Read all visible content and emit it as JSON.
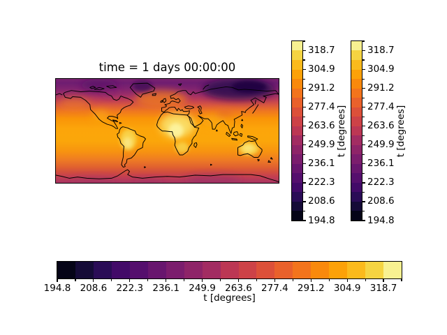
{
  "figure": {
    "title": "time = 1 days 00:00:00",
    "background": "#ffffff"
  },
  "colormap": {
    "name": "inferno",
    "segment_colors": [
      "#050417",
      "#150b37",
      "#2a0c56",
      "#420a68",
      "#550f6d",
      "#68166e",
      "#7b1d6d",
      "#8e2468",
      "#a22c62",
      "#bc3754",
      "#cd4247",
      "#dc5039",
      "#e9612b",
      "#f3741c",
      "#f9890c",
      "#fca108",
      "#fbba1c",
      "#f5d442",
      "#f8f191"
    ]
  },
  "colorbars": {
    "label": "t [degrees]",
    "tick_labels": [
      "194.8",
      "208.6",
      "222.3",
      "236.1",
      "249.9",
      "263.6",
      "277.4",
      "291.2",
      "304.9",
      "318.7"
    ]
  },
  "chart_data": {
    "type": "heatmap",
    "title": "time = 1 days 00:00:00",
    "variable": "t",
    "colorbar_label": "t [degrees]",
    "colormap": "inferno, discrete (19 filled-contour levels)",
    "level_min": 194.8,
    "level_max": 325.6,
    "level_step": 6.9,
    "colorbar_ticks": [
      194.8,
      208.6,
      222.3,
      236.1,
      249.9,
      263.6,
      277.4,
      291.2,
      304.9,
      318.7
    ],
    "colorbars": [
      {
        "position": "right-inner",
        "orientation": "vertical",
        "label": "t [degrees]"
      },
      {
        "position": "right-outer",
        "orientation": "vertical",
        "label": "t [degrees]"
      },
      {
        "position": "bottom",
        "orientation": "horizontal",
        "label": "t [degrees]"
      }
    ],
    "map": "global equirectangular filled-contour temperature field with black coastlines, no axis ticks",
    "field_summary": [
      {
        "region": "Arctic / northeastern Siberia",
        "approx_value": 205
      },
      {
        "region": "northern Canada / Greenland",
        "approx_value": 235
      },
      {
        "region": "northern mid-latitude oceans",
        "approx_value": 278
      },
      {
        "region": "tropical oceans",
        "approx_value": 300
      },
      {
        "region": "tropical land (Sahara, Amazon, Australia)",
        "approx_value": 318
      },
      {
        "region": "southern ocean",
        "approx_value": 272
      },
      {
        "region": "Antarctica",
        "approx_value": 255
      }
    ]
  }
}
